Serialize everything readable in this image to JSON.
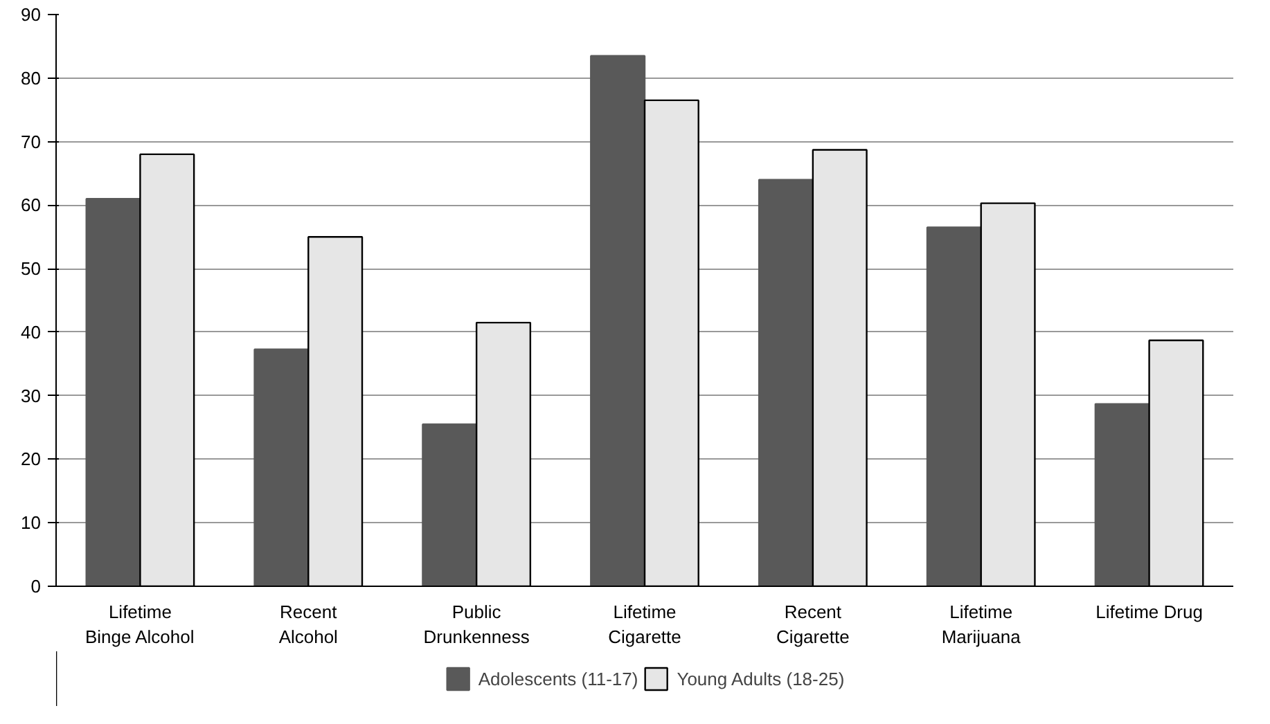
{
  "chart_data": {
    "type": "bar",
    "categories": [
      "Lifetime\nBinge Alcohol",
      "Recent\nAlcohol",
      "Public\nDrunkenness",
      "Lifetime\nCigarette",
      "Recent\nCigarette",
      "Lifetime\nMarijuana",
      "Lifetime Drug"
    ],
    "series": [
      {
        "name": "Adolescents (11-17)",
        "color": "#595959",
        "values": [
          61,
          37.3,
          25.5,
          83.5,
          64,
          56.5,
          28.7
        ]
      },
      {
        "name": "Young Adults (18-25)",
        "color": "#e6e6e6",
        "values": [
          68,
          55,
          41.5,
          76.5,
          68.7,
          60.3,
          38.7
        ]
      }
    ],
    "ylim": [
      0,
      90
    ],
    "yticks": [
      0,
      10,
      20,
      30,
      40,
      50,
      60,
      70,
      80,
      90
    ],
    "grid": "y",
    "legend": "bottom"
  }
}
